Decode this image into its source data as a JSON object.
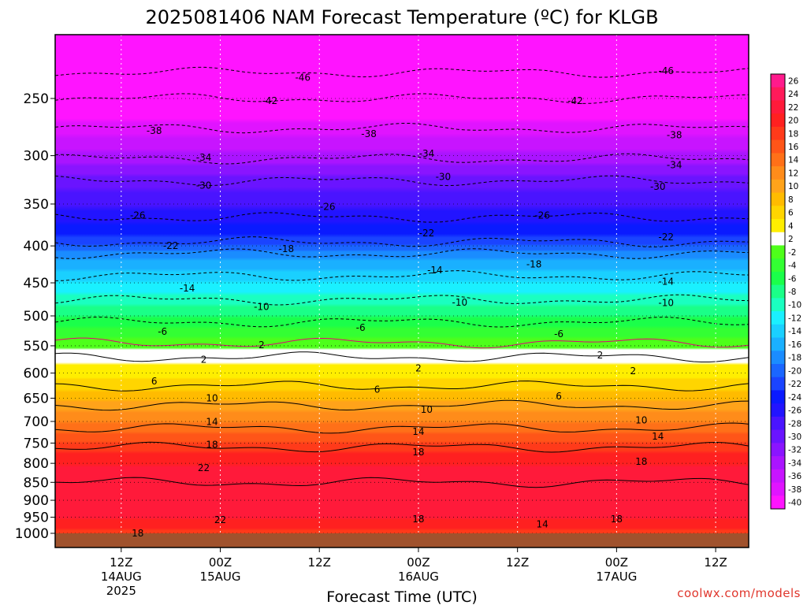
{
  "chart_data": {
    "type": "heatmap",
    "title": "2025081406 NAM Forecast Temperature (ºC) for KLGB",
    "xlabel": "Forecast Time (UTC)",
    "ylabel": "",
    "y_axis": {
      "scale": "log",
      "inverted": true,
      "range": [
        1000,
        200
      ],
      "ticks": [
        250,
        300,
        350,
        400,
        450,
        500,
        550,
        600,
        650,
        700,
        750,
        800,
        850,
        900,
        950,
        1000
      ]
    },
    "x_axis": {
      "range_hours_from_init": [
        -2,
        82
      ],
      "ticks": [
        {
          "label": "12Z",
          "sub": "14AUG",
          "sub2": "2025",
          "hour": 6
        },
        {
          "label": "00Z",
          "sub": "15AUG",
          "sub2": "",
          "hour": 18
        },
        {
          "label": "12Z",
          "sub": "",
          "sub2": "",
          "hour": 30
        },
        {
          "label": "00Z",
          "sub": "16AUG",
          "sub2": "",
          "hour": 42
        },
        {
          "label": "12Z",
          "sub": "",
          "sub2": "",
          "hour": 54
        },
        {
          "label": "00Z",
          "sub": "17AUG",
          "sub2": "",
          "hour": 66
        },
        {
          "label": "12Z",
          "sub": "",
          "sub2": "",
          "hour": 78
        }
      ]
    },
    "grid": true,
    "levels": [
      -46,
      -42,
      -38,
      -34,
      -30,
      -26,
      -22,
      -18,
      -14,
      -10,
      -6,
      -2,
      2,
      6,
      10,
      14,
      18,
      22
    ],
    "temperature_profile": [
      {
        "p": 200,
        "t": -50
      },
      {
        "p": 230,
        "t": -46
      },
      {
        "p": 250,
        "t": -42
      },
      {
        "p": 275,
        "t": -38
      },
      {
        "p": 303,
        "t": -34
      },
      {
        "p": 325,
        "t": -30
      },
      {
        "p": 365,
        "t": -26
      },
      {
        "p": 395,
        "t": -22
      },
      {
        "p": 410,
        "t": -18
      },
      {
        "p": 440,
        "t": -14
      },
      {
        "p": 475,
        "t": -10
      },
      {
        "p": 510,
        "t": -6
      },
      {
        "p": 545,
        "t": -2
      },
      {
        "p": 570,
        "t": 2
      },
      {
        "p": 600,
        "t": 4
      },
      {
        "p": 625,
        "t": 6
      },
      {
        "p": 665,
        "t": 10
      },
      {
        "p": 715,
        "t": 14
      },
      {
        "p": 760,
        "t": 18
      },
      {
        "p": 810,
        "t": 21
      },
      {
        "p": 850,
        "t": 22
      },
      {
        "p": 900,
        "t": 22
      },
      {
        "p": 950,
        "t": 21
      },
      {
        "p": 1000,
        "t": 18
      }
    ],
    "contour_labels": [
      {
        "text": "-46",
        "hour": 28,
        "p": 234
      },
      {
        "text": "-46",
        "hour": 72,
        "p": 229
      },
      {
        "text": "-42",
        "hour": 24,
        "p": 252
      },
      {
        "text": "-42",
        "hour": 61,
        "p": 252
      },
      {
        "text": "-38",
        "hour": 10,
        "p": 277
      },
      {
        "text": "-38",
        "hour": 36,
        "p": 280
      },
      {
        "text": "-38",
        "hour": 73,
        "p": 281
      },
      {
        "text": "-34",
        "hour": 16,
        "p": 302
      },
      {
        "text": "-34",
        "hour": 43,
        "p": 298
      },
      {
        "text": "-34",
        "hour": 73,
        "p": 309
      },
      {
        "text": "-30",
        "hour": 16,
        "p": 330
      },
      {
        "text": "-30",
        "hour": 45,
        "p": 321
      },
      {
        "text": "-30",
        "hour": 71,
        "p": 331
      },
      {
        "text": "-26",
        "hour": 8,
        "p": 363
      },
      {
        "text": "-26",
        "hour": 31,
        "p": 353
      },
      {
        "text": "-26",
        "hour": 57,
        "p": 363
      },
      {
        "text": "-22",
        "hour": 12,
        "p": 400
      },
      {
        "text": "-22",
        "hour": 43,
        "p": 384
      },
      {
        "text": "-22",
        "hour": 72,
        "p": 389
      },
      {
        "text": "-18",
        "hour": 26,
        "p": 404
      },
      {
        "text": "-18",
        "hour": 56,
        "p": 424
      },
      {
        "text": "-14",
        "hour": 14,
        "p": 458
      },
      {
        "text": "-14",
        "hour": 44,
        "p": 432
      },
      {
        "text": "-14",
        "hour": 72,
        "p": 448
      },
      {
        "text": "-10",
        "hour": 23,
        "p": 486
      },
      {
        "text": "-10",
        "hour": 47,
        "p": 479
      },
      {
        "text": "-10",
        "hour": 72,
        "p": 480
      },
      {
        "text": "-6",
        "hour": 11,
        "p": 526
      },
      {
        "text": "-6",
        "hour": 35,
        "p": 519
      },
      {
        "text": "-6",
        "hour": 59,
        "p": 530
      },
      {
        "text": "2",
        "hour": 23,
        "p": 549
      },
      {
        "text": "2",
        "hour": 64,
        "p": 567
      },
      {
        "text": "2",
        "hour": 16,
        "p": 575
      },
      {
        "text": "2",
        "hour": 42,
        "p": 591
      },
      {
        "text": "2",
        "hour": 68,
        "p": 596
      },
      {
        "text": "6",
        "hour": 10,
        "p": 616
      },
      {
        "text": "6",
        "hour": 37,
        "p": 632
      },
      {
        "text": "6",
        "hour": 59,
        "p": 646
      },
      {
        "text": "10",
        "hour": 17,
        "p": 650
      },
      {
        "text": "10",
        "hour": 43,
        "p": 674
      },
      {
        "text": "10",
        "hour": 69,
        "p": 697
      },
      {
        "text": "14",
        "hour": 17,
        "p": 701
      },
      {
        "text": "14",
        "hour": 42,
        "p": 723
      },
      {
        "text": "14",
        "hour": 71,
        "p": 734
      },
      {
        "text": "18",
        "hour": 17,
        "p": 754
      },
      {
        "text": "18",
        "hour": 42,
        "p": 772
      },
      {
        "text": "18",
        "hour": 69,
        "p": 796
      },
      {
        "text": "22",
        "hour": 16,
        "p": 812
      },
      {
        "text": "22",
        "hour": 18,
        "p": 958
      },
      {
        "text": "18",
        "hour": 42,
        "p": 956
      },
      {
        "text": "18",
        "hour": 66,
        "p": 956
      },
      {
        "text": "14",
        "hour": 57,
        "p": 972
      },
      {
        "text": "18",
        "hour": 8,
        "p": 1000
      }
    ],
    "colorbar": {
      "labels": [
        "26",
        "24",
        "22",
        "20",
        "18",
        "16",
        "14",
        "12",
        "10",
        "8",
        "6",
        "4",
        "2",
        "-2",
        "-4",
        "-6",
        "-8",
        "-10",
        "-12",
        "-14",
        "-16",
        "-18",
        "-20",
        "-22",
        "-24",
        "-26",
        "-28",
        "-30",
        "-32",
        "-34",
        "-36",
        "-38",
        "-40"
      ],
      "colors": [
        "#ff1a8c",
        "#ff1a5a",
        "#ff1a3a",
        "#ff2020",
        "#ff3a1a",
        "#ff5518",
        "#ff7018",
        "#ff8c1a",
        "#ffa31a",
        "#ffbb00",
        "#ffd500",
        "#ffee00",
        "#ffffff",
        "#4eff1a",
        "#33ff33",
        "#1aff4a",
        "#1aff88",
        "#1affc0",
        "#1af0ff",
        "#1ad0ff",
        "#1ab0ff",
        "#1a8cff",
        "#1a66ff",
        "#1a44ff",
        "#0a1aff",
        "#2214ff",
        "#4a14ff",
        "#6a14ff",
        "#8a14ff",
        "#aa14ff",
        "#c814ff",
        "#e014ff",
        "#ff14ff"
      ]
    },
    "credit": "coolwx.com/models"
  }
}
